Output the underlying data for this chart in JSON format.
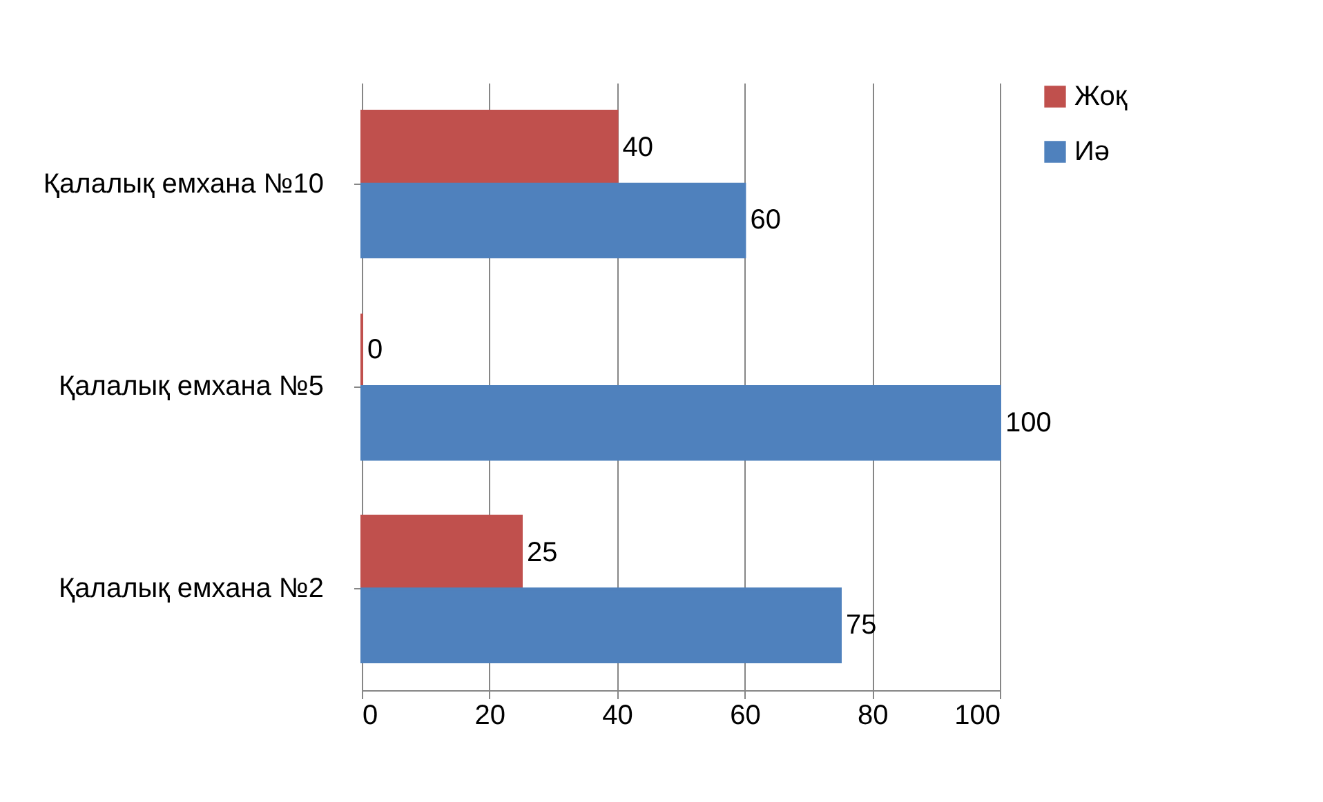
{
  "chart_data": {
    "type": "bar",
    "orientation": "horizontal",
    "categories": [
      "Қалалық емхана №10",
      "Қалалық емхана №5",
      "Қалалық емхана №2"
    ],
    "series": [
      {
        "name": "Жоқ",
        "color": "#c0504d",
        "values": [
          40,
          0,
          25
        ]
      },
      {
        "name": "Иә",
        "color": "#4f81bd",
        "values": [
          60,
          100,
          75
        ]
      }
    ],
    "xlim": [
      0,
      100
    ],
    "xticks": [
      0,
      20,
      40,
      60,
      80,
      100
    ],
    "grid": "x",
    "legend": "right",
    "data_labels": true
  }
}
